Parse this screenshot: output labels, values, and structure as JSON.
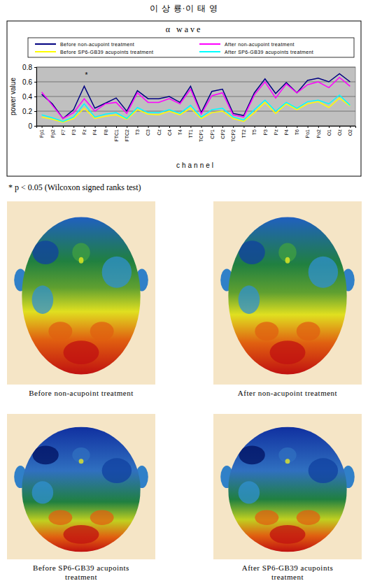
{
  "header": "이 상 룡·이 태 영",
  "chart_data": {
    "type": "line",
    "title": "α wave",
    "x_label": "channel",
    "y_label": "power value",
    "categories": [
      "Fp1",
      "Fp2",
      "F7",
      "F3",
      "Fz",
      "F4",
      "F8",
      "FTC1",
      "FTC2",
      "T3",
      "C3",
      "Cz",
      "C4",
      "T4",
      "TT1",
      "TCP1",
      "CP1",
      "CP2",
      "TCP2",
      "TT2",
      "T5",
      "P3",
      "Pz",
      "P4",
      "T6",
      "Po1",
      "Po2",
      "O1",
      "Oz",
      "O2"
    ],
    "series": [
      {
        "name": "Before non-acupoint treatment",
        "color": "#000080",
        "values": [
          0.43,
          0.3,
          0.1,
          0.22,
          0.54,
          0.24,
          0.31,
          0.38,
          0.2,
          0.48,
          0.37,
          0.37,
          0.4,
          0.32,
          0.54,
          0.18,
          0.47,
          0.5,
          0.17,
          0.14,
          0.45,
          0.64,
          0.44,
          0.59,
          0.45,
          0.62,
          0.65,
          0.6,
          0.71,
          0.6
        ]
      },
      {
        "name": "After non-acupoint treatment",
        "color": "#ff00ff",
        "values": [
          0.46,
          0.28,
          0.1,
          0.18,
          0.37,
          0.2,
          0.3,
          0.32,
          0.17,
          0.45,
          0.32,
          0.32,
          0.37,
          0.3,
          0.5,
          0.16,
          0.41,
          0.45,
          0.15,
          0.12,
          0.42,
          0.6,
          0.38,
          0.57,
          0.45,
          0.56,
          0.6,
          0.52,
          0.66,
          0.54
        ]
      },
      {
        "name": "Before SP6-GB39 acupoints treatment",
        "color": "#ffff00",
        "values": [
          0.12,
          0.09,
          0.05,
          0.1,
          0.24,
          0.1,
          0.13,
          0.15,
          0.09,
          0.22,
          0.16,
          0.15,
          0.2,
          0.15,
          0.24,
          0.1,
          0.18,
          0.2,
          0.1,
          0.06,
          0.18,
          0.32,
          0.17,
          0.3,
          0.22,
          0.3,
          0.33,
          0.25,
          0.38,
          0.27
        ]
      },
      {
        "name": "After SP6-GB39 acupoints treatment",
        "color": "#00ffff",
        "values": [
          0.15,
          0.11,
          0.06,
          0.12,
          0.3,
          0.12,
          0.16,
          0.18,
          0.1,
          0.25,
          0.18,
          0.18,
          0.22,
          0.17,
          0.28,
          0.12,
          0.22,
          0.24,
          0.12,
          0.08,
          0.22,
          0.35,
          0.2,
          0.32,
          0.24,
          0.33,
          0.35,
          0.3,
          0.42,
          0.28
        ]
      }
    ],
    "annotations": [
      {
        "text": "*",
        "x": "Fz",
        "y": 0.66
      }
    ],
    "ylim": [
      0,
      0.8
    ],
    "yticks": [
      0,
      0.2,
      0.4,
      0.6,
      0.8
    ],
    "grid": true,
    "legend": "top"
  },
  "footnote": "* p < 0.05 (Wilcoxon signed ranks test)",
  "maps": [
    {
      "caption": "Before non-acupoint treatment"
    },
    {
      "caption": "After non-acupoint treatment"
    },
    {
      "caption": "Before SP6-GB39 acupoints treatment"
    },
    {
      "caption": "After SP6-GB39 acupoints treatment"
    }
  ]
}
